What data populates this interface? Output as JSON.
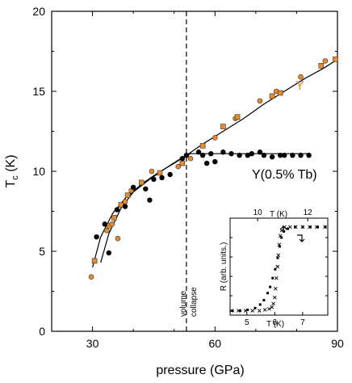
{
  "chart_data": [
    {
      "type": "scatter",
      "xlabel": "pressure (GPa)",
      "ylabel_main": "T",
      "ylabel_sub": "c",
      "ylabel_unit": " (K)",
      "xlim": [
        20,
        90
      ],
      "ylim": [
        0,
        20
      ],
      "xticks": [
        30,
        60,
        90
      ],
      "yticks": [
        0,
        5,
        10,
        15,
        20
      ],
      "colors": {
        "Y": "#e8892c",
        "Y(0.5% Tb)": "#000000",
        "axis": "#000000"
      },
      "annotations": {
        "collapse_pressure": 53,
        "line1": "volume",
        "line2": "collapse"
      },
      "series": [
        {
          "name": "Y",
          "label_color": "#e8892c",
          "points": [
            [
              29.7,
              3.4
            ],
            [
              30.5,
              4.4
            ],
            [
              33.5,
              6.3
            ],
            [
              34.2,
              6.6
            ],
            [
              34.8,
              6.7
            ],
            [
              35.3,
              7.1
            ],
            [
              36.2,
              5.8
            ],
            [
              37,
              7.9
            ],
            [
              38,
              8.1
            ],
            [
              38.6,
              8.5
            ],
            [
              39.5,
              8.8
            ],
            [
              42,
              9.3
            ],
            [
              44.5,
              10
            ],
            [
              46.5,
              9.9
            ],
            [
              51,
              10.3
            ],
            [
              52,
              10.5
            ],
            [
              54,
              10.8
            ],
            [
              57,
              11.6
            ],
            [
              60,
              12.1
            ],
            [
              62,
              12.8
            ],
            [
              65,
              13.3
            ],
            [
              65.5,
              13.4
            ],
            [
              71,
              14.4
            ],
            [
              74,
              14.7
            ],
            [
              75,
              15
            ],
            [
              76,
              14.9
            ],
            [
              81,
              15.9
            ],
            [
              86,
              16.6
            ],
            [
              87,
              16.9
            ],
            [
              89.5,
              17
            ]
          ],
          "fit": [
            [
              30,
              4
            ],
            [
              32,
              5.9
            ],
            [
              35,
              7.4
            ],
            [
              38,
              8.3
            ],
            [
              42,
              9.2
            ],
            [
              46,
              9.9
            ],
            [
              50,
              10.5
            ],
            [
              53,
              11
            ],
            [
              57,
              11.7
            ],
            [
              62,
              12.5
            ],
            [
              67,
              13.3
            ],
            [
              72,
              14.2
            ],
            [
              77,
              15
            ],
            [
              82,
              15.8
            ],
            [
              87,
              16.5
            ],
            [
              90,
              17
            ]
          ]
        },
        {
          "name": "Y(0.5% Tb)",
          "label_color": "#000000",
          "points": [
            [
              31,
              5.9
            ],
            [
              33,
              6.7
            ],
            [
              34,
              4.9
            ],
            [
              36,
              7.6
            ],
            [
              38,
              7.8
            ],
            [
              40,
              9
            ],
            [
              43,
              8.9
            ],
            [
              44,
              8.2
            ],
            [
              45,
              9.5
            ],
            [
              47,
              9.6
            ],
            [
              49,
              9.8
            ],
            [
              52,
              10.8
            ],
            [
              53,
              11
            ],
            [
              56,
              11.2
            ],
            [
              57,
              11
            ],
            [
              58,
              10.5
            ],
            [
              59,
              11.1
            ],
            [
              60,
              10.6
            ],
            [
              62,
              11.2
            ],
            [
              64,
              11.1
            ],
            [
              66,
              11
            ],
            [
              68,
              11
            ],
            [
              69,
              11.1
            ],
            [
              71,
              11.2
            ],
            [
              72,
              11
            ],
            [
              74,
              10.9
            ],
            [
              76,
              11
            ],
            [
              77,
              11
            ],
            [
              79,
              11
            ],
            [
              81,
              11
            ],
            [
              83,
              11
            ]
          ],
          "fit": [
            [
              32,
              4.3
            ],
            [
              34,
              6.1
            ],
            [
              37,
              7.7
            ],
            [
              40,
              8.7
            ],
            [
              44,
              9.5
            ],
            [
              48,
              10.2
            ],
            [
              51,
              10.7
            ],
            [
              54,
              11.1
            ],
            [
              57,
              11.1
            ],
            [
              62,
              11.1
            ],
            [
              70,
              11.1
            ],
            [
              78,
              11.1
            ],
            [
              83,
              11.1
            ]
          ]
        }
      ]
    },
    {
      "type": "scatter",
      "xlabel": "T (K)",
      "xlabel_top": "T (K)",
      "ylabel": "R (arb. units.)",
      "xlim": [
        4.4,
        7.9
      ],
      "xticks": [
        5,
        6,
        7
      ],
      "top_xlim": [
        8.9,
        12.8
      ],
      "top_xticks": [
        10,
        12
      ],
      "ylim": [
        0,
        1.1
      ],
      "series": [
        {
          "name": "x",
          "marker": "x",
          "points": [
            [
              4.45,
              0.05
            ],
            [
              4.7,
              0.05
            ],
            [
              4.95,
              0.05
            ],
            [
              5.2,
              0.05
            ],
            [
              5.45,
              0.05
            ],
            [
              5.65,
              0.06
            ],
            [
              5.8,
              0.07
            ],
            [
              5.9,
              0.09
            ],
            [
              5.95,
              0.13
            ],
            [
              6.0,
              0.2
            ],
            [
              6.03,
              0.3
            ],
            [
              6.06,
              0.42
            ],
            [
              6.1,
              0.55
            ],
            [
              6.13,
              0.68
            ],
            [
              6.16,
              0.8
            ],
            [
              6.2,
              0.9
            ],
            [
              6.25,
              0.96
            ],
            [
              6.35,
              1.0
            ],
            [
              6.55,
              1.0
            ],
            [
              6.75,
              1.0
            ],
            [
              7.0,
              1.0
            ],
            [
              7.25,
              1.0
            ],
            [
              7.5,
              1.0
            ],
            [
              7.8,
              1.0
            ]
          ]
        },
        {
          "name": "dots",
          "marker": "square",
          "points": [
            [
              9.0,
              0.05
            ],
            [
              9.3,
              0.05
            ],
            [
              9.6,
              0.06
            ],
            [
              9.9,
              0.08
            ],
            [
              10.1,
              0.12
            ],
            [
              10.25,
              0.17
            ],
            [
              10.4,
              0.25
            ],
            [
              10.5,
              0.32
            ],
            [
              10.6,
              0.42
            ],
            [
              10.7,
              0.52
            ],
            [
              10.8,
              0.65
            ],
            [
              10.88,
              0.78
            ],
            [
              10.95,
              0.88
            ],
            [
              11.05,
              0.95
            ],
            [
              11.2,
              0.98
            ],
            [
              11.5,
              1.0
            ],
            [
              11.8,
              1.0
            ],
            [
              12.1,
              1.0
            ],
            [
              12.4,
              1.0
            ],
            [
              12.7,
              1.0
            ]
          ]
        }
      ]
    }
  ]
}
